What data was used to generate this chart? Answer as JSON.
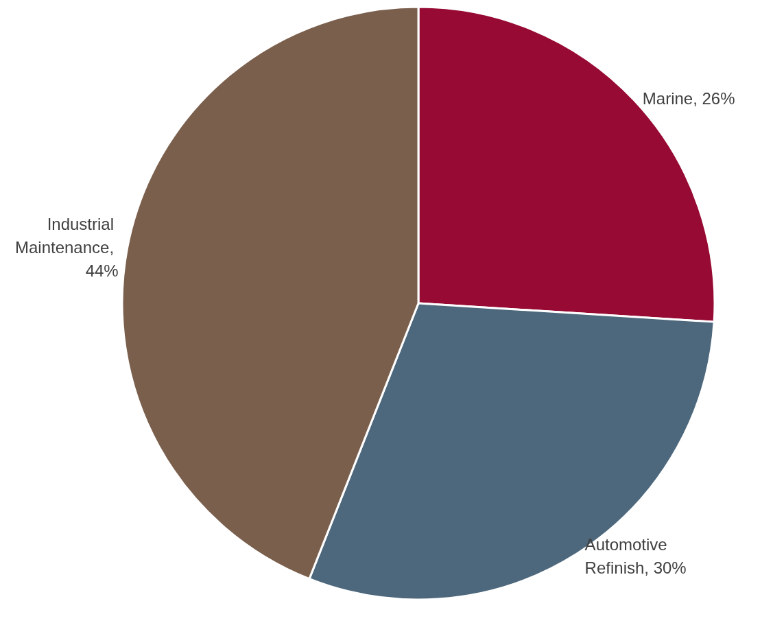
{
  "chart_data": {
    "type": "pie",
    "categories": [
      "Marine, 26%",
      "Automotive Refinish, 30%",
      "Industrial Maintenance, 44%"
    ],
    "values": [
      26,
      30,
      44
    ],
    "colors": [
      "#960a33",
      "#4d687d",
      "#7a5f4d"
    ],
    "legend": false
  }
}
